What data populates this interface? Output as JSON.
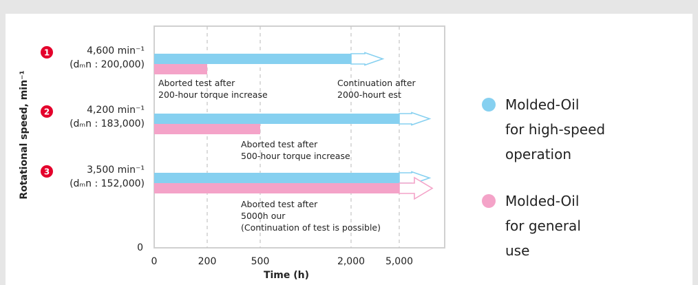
{
  "chart_data": {
    "type": "bar",
    "orientation": "horizontal",
    "title": "",
    "ylabel": "Rotational speed, min⁻¹",
    "xlabel": "Time (h)",
    "y_origin_label": "0",
    "x_ticks": [
      "0",
      "200",
      "500",
      "2,000",
      "5,000"
    ],
    "grid": "dashed vertical lines at 200, 500, 2,000 and 5,000",
    "categories": [
      {
        "marker": "1",
        "speed": "4,600 min⁻¹",
        "dmn": "(dₘn : 200,000)"
      },
      {
        "marker": "2",
        "speed": "4,200 min⁻¹",
        "dmn": "(dₘn : 183,000)"
      },
      {
        "marker": "3",
        "speed": "3,500 min⁻¹",
        "dmn": "(dₘn : 152,000)"
      }
    ],
    "series": [
      {
        "name": "Molded-Oil for high-speed operation",
        "color": "#86d0f0",
        "values": [
          2000,
          5000,
          5000
        ],
        "continuing": [
          true,
          true,
          true
        ]
      },
      {
        "name": "Molded-Oil for general use",
        "color": "#f4a3c8",
        "values": [
          200,
          500,
          5000
        ],
        "continuing": [
          false,
          false,
          true
        ]
      }
    ],
    "annotations": [
      {
        "row": 1,
        "lines": [
          "Aborted test after",
          "200-hour torque increase"
        ]
      },
      {
        "row": 1,
        "lines": [
          "Continuation after",
          "2000-hourt est"
        ]
      },
      {
        "row": 2,
        "lines": [
          "Aborted test after",
          "500-hour torque increase"
        ]
      },
      {
        "row": 3,
        "lines": [
          "Aborted test after",
          "5000h our",
          "(Continuation of test is possible)"
        ]
      }
    ]
  },
  "legend": [
    {
      "lines": [
        "Molded-Oil",
        "for high-speed",
        "operation"
      ],
      "color": "#86d0f0"
    },
    {
      "lines": [
        "Molded-Oil",
        "for general",
        "use"
      ],
      "color": "#f4a3c8"
    }
  ],
  "marker_color": "#e4002b"
}
